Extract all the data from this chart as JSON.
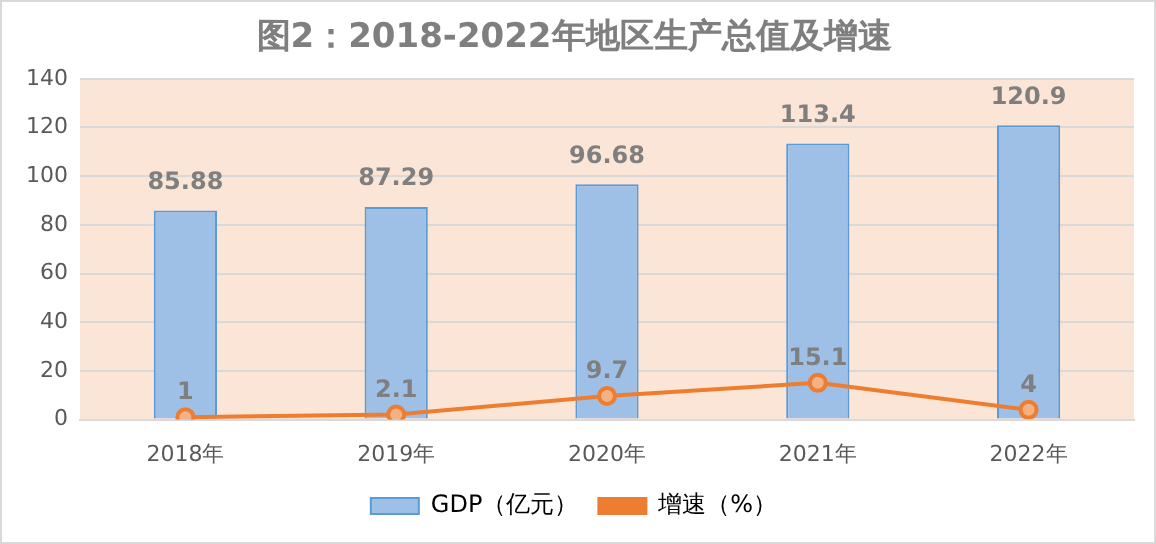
{
  "chart_data": {
    "type": "bar",
    "title": "图2：2018-2022年地区生产总值及增速",
    "categories": [
      "2018年",
      "2019年",
      "2020年",
      "2021年",
      "2022年"
    ],
    "series": [
      {
        "name": "GDP（亿元）",
        "color": "#9fc0e6",
        "values": [
          85.88,
          87.29,
          96.68,
          113.4,
          120.9
        ]
      },
      {
        "name": "增速（%）",
        "type": "line",
        "color": "#ed7d31",
        "values": [
          1,
          2.1,
          9.7,
          15.1,
          4
        ]
      }
    ],
    "ylim": [
      0,
      140
    ],
    "yticks": [
      0,
      20,
      40,
      60,
      80,
      100,
      120,
      140
    ],
    "grid": "y",
    "legend": "bottom",
    "data_labels": true,
    "marker": "circle"
  }
}
